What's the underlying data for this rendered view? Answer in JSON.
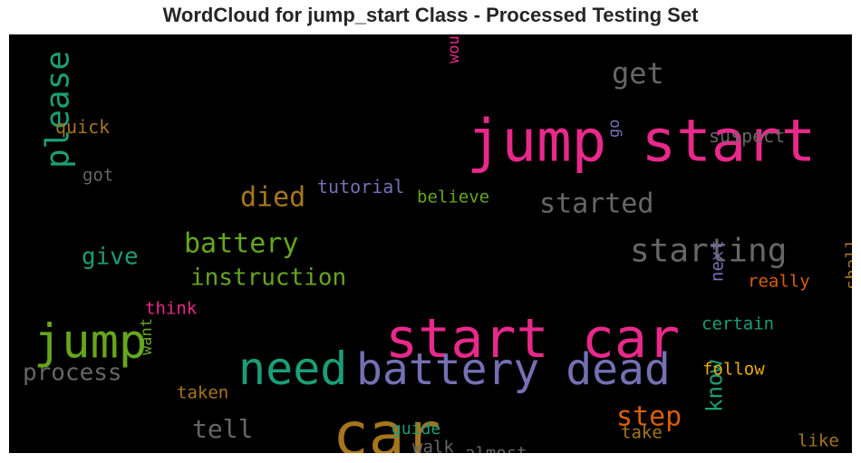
{
  "title": "WordCloud for jump_start Class - Processed Testing Set",
  "chart_data": {
    "type": "wordcloud",
    "background": "#000000",
    "colormap": [
      "#1b9e77",
      "#d95f02",
      "#7570b3",
      "#e7298a",
      "#66a61e",
      "#e6ab02",
      "#a6761d",
      "#666666"
    ],
    "words": [
      {
        "text": "jump start",
        "color": "#e7298a"
      },
      {
        "text": "start car",
        "color": "#e7298a"
      },
      {
        "text": "car",
        "color": "#a6761d"
      },
      {
        "text": "battery dead",
        "color": "#7570b3"
      },
      {
        "text": "need",
        "color": "#1b9e77"
      },
      {
        "text": "jump",
        "color": "#66a61e"
      },
      {
        "text": "starting",
        "color": "#666666"
      },
      {
        "text": "please",
        "color": "#1b9e77"
      },
      {
        "text": "battery",
        "color": "#66a61e"
      },
      {
        "text": "started",
        "color": "#666666"
      },
      {
        "text": "died",
        "color": "#a6761d"
      },
      {
        "text": "get",
        "color": "#666666"
      },
      {
        "text": "instruction",
        "color": "#66a61e"
      },
      {
        "text": "step",
        "color": "#d95f02"
      },
      {
        "text": "know",
        "color": "#1b9e77"
      },
      {
        "text": "process",
        "color": "#666666"
      },
      {
        "text": "tell",
        "color": "#666666"
      },
      {
        "text": "give",
        "color": "#1b9e77"
      },
      {
        "text": "tutorial",
        "color": "#7570b3"
      },
      {
        "text": "believe",
        "color": "#66a61e"
      },
      {
        "text": "suspect",
        "color": "#666666"
      },
      {
        "text": "quick",
        "color": "#a6761d"
      },
      {
        "text": "got",
        "color": "#666666"
      },
      {
        "text": "would",
        "color": "#e7298a"
      },
      {
        "text": "go",
        "color": "#7570b3"
      },
      {
        "text": "think",
        "color": "#e7298a"
      },
      {
        "text": "next",
        "color": "#7570b3"
      },
      {
        "text": "really",
        "color": "#d95f02"
      },
      {
        "text": "shall",
        "color": "#a6761d"
      },
      {
        "text": "certain",
        "color": "#1b9e77"
      },
      {
        "text": "follow",
        "color": "#e6ab02"
      },
      {
        "text": "want",
        "color": "#66a61e"
      },
      {
        "text": "taken",
        "color": "#a6761d"
      },
      {
        "text": "guide",
        "color": "#1b9e77"
      },
      {
        "text": "walk",
        "color": "#666666"
      },
      {
        "text": "almost",
        "color": "#666666"
      },
      {
        "text": "take",
        "color": "#a6761d"
      },
      {
        "text": "like",
        "color": "#a6761d"
      }
    ]
  }
}
